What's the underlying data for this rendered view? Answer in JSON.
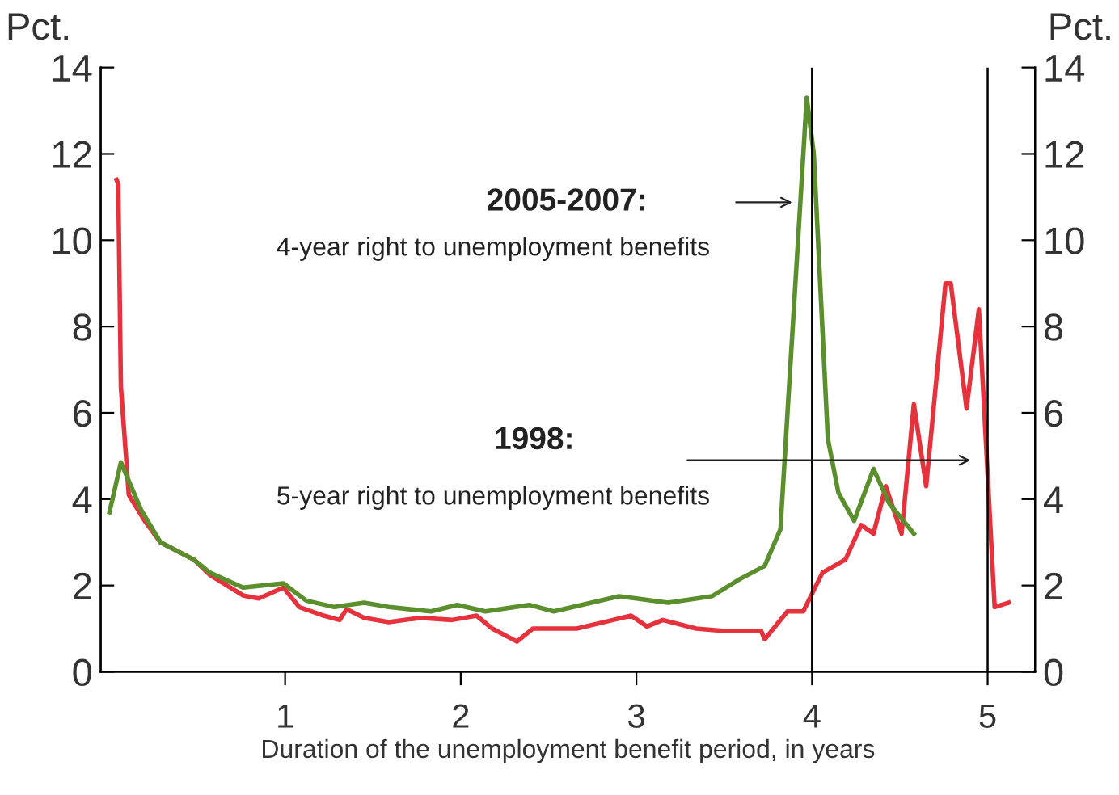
{
  "chart_data": {
    "type": "line",
    "xlabel": "Duration of the unemployment benefit period, in years",
    "ylabel": "Pct.",
    "y2label": "Pct.",
    "xlim": [
      -0.05,
      5.27
    ],
    "xticks": [
      1,
      2,
      3,
      4,
      5
    ],
    "ylim": [
      0,
      14
    ],
    "yticks": [
      0,
      2,
      4,
      6,
      8,
      10,
      12,
      14
    ],
    "y2lim": [
      0,
      14
    ],
    "y2ticks": [
      0,
      2,
      4,
      6,
      8,
      10,
      12,
      14
    ],
    "grid": false,
    "legend": false,
    "marker": "none",
    "line_style": "solid",
    "series": [
      {
        "color": "#e5323c",
        "x": [
          0.04,
          0.05,
          0.065,
          0.11,
          0.2,
          0.29,
          0.48,
          0.57,
          0.76,
          0.85,
          0.99,
          1.08,
          1.22,
          1.31,
          1.35,
          1.45,
          1.59,
          1.77,
          1.95,
          2.09,
          2.18,
          2.32,
          2.41,
          2.55,
          2.66,
          2.97,
          3.06,
          3.15,
          3.34,
          3.49,
          3.71,
          3.73,
          3.86,
          3.95,
          4.06,
          4.19,
          4.28,
          4.35,
          4.42,
          4.51,
          4.58,
          4.65,
          4.76,
          4.79,
          4.88,
          4.95,
          5.04,
          5.12
        ],
        "values": [
          11.4,
          11.3,
          6.6,
          4.1,
          3.5,
          3.0,
          2.6,
          2.25,
          1.77,
          1.7,
          1.95,
          1.5,
          1.3,
          1.2,
          1.45,
          1.25,
          1.15,
          1.25,
          1.2,
          1.3,
          1.0,
          0.7,
          1.0,
          1.0,
          1.0,
          1.3,
          1.05,
          1.2,
          1.0,
          0.95,
          0.95,
          0.75,
          1.4,
          1.4,
          2.3,
          2.6,
          3.4,
          3.2,
          4.3,
          3.2,
          6.2,
          4.3,
          9.0,
          9.0,
          6.1,
          8.4,
          1.5,
          1.6
        ]
      },
      {
        "color": "#5b8e2c",
        "x": [
          0.0,
          0.065,
          0.18,
          0.29,
          0.48,
          0.57,
          0.76,
          0.99,
          1.12,
          1.28,
          1.45,
          1.59,
          1.83,
          1.98,
          2.14,
          2.39,
          2.53,
          2.9,
          3.0,
          3.18,
          3.43,
          3.59,
          3.73,
          3.82,
          3.87,
          3.97,
          4.01,
          4.09,
          4.15,
          4.24,
          4.35,
          4.44,
          4.58
        ],
        "values": [
          3.7,
          4.85,
          3.75,
          3.0,
          2.6,
          2.3,
          1.95,
          2.05,
          1.65,
          1.5,
          1.6,
          1.5,
          1.4,
          1.55,
          1.4,
          1.55,
          1.4,
          1.75,
          1.7,
          1.6,
          1.75,
          2.15,
          2.45,
          3.3,
          6.65,
          13.3,
          12.0,
          5.4,
          4.15,
          3.5,
          4.7,
          3.9,
          3.2
        ]
      }
    ],
    "ref_lines": [
      {
        "axis": "x",
        "value": 4,
        "color": "#000000"
      },
      {
        "axis": "x",
        "value": 5,
        "color": "#000000"
      }
    ],
    "annotations": [
      "2005-2007:",
      "4-year right to unemployment benefits",
      "1998:",
      "5-year right to unemployment benefits"
    ]
  }
}
